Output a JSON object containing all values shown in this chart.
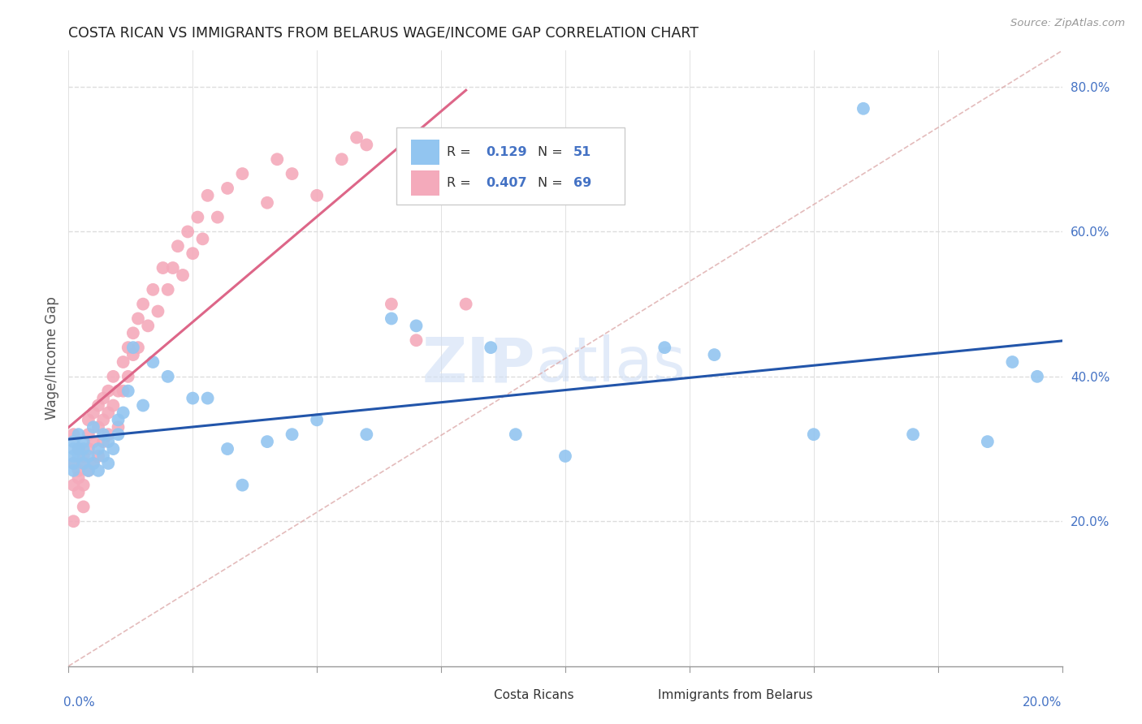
{
  "title": "COSTA RICAN VS IMMIGRANTS FROM BELARUS WAGE/INCOME GAP CORRELATION CHART",
  "source": "Source: ZipAtlas.com",
  "ylabel": "Wage/Income Gap",
  "blue_color": "#92C5F0",
  "pink_color": "#F4AABB",
  "blue_line_color": "#2255AA",
  "pink_line_color": "#DD6688",
  "diag_line_color": "#DDAAAA",
  "watermark_zip": "ZIP",
  "watermark_atlas": "atlas",
  "legend_r1": "R = ",
  "legend_v1": "0.129",
  "legend_n1": "N = ",
  "legend_nv1": "51",
  "legend_r2": "R = ",
  "legend_v2": "0.407",
  "legend_n2": "N = ",
  "legend_nv2": "69",
  "blue_x": [
    0.001,
    0.001,
    0.001,
    0.001,
    0.001,
    0.002,
    0.002,
    0.002,
    0.003,
    0.003,
    0.003,
    0.004,
    0.004,
    0.005,
    0.005,
    0.006,
    0.006,
    0.007,
    0.007,
    0.008,
    0.008,
    0.009,
    0.01,
    0.01,
    0.011,
    0.012,
    0.013,
    0.015,
    0.017,
    0.02,
    0.025,
    0.028,
    0.032,
    0.035,
    0.04,
    0.045,
    0.05,
    0.06,
    0.065,
    0.07,
    0.085,
    0.09,
    0.1,
    0.12,
    0.13,
    0.15,
    0.16,
    0.17,
    0.185,
    0.19,
    0.195
  ],
  "blue_y": [
    0.3,
    0.28,
    0.27,
    0.31,
    0.29,
    0.3,
    0.32,
    0.29,
    0.28,
    0.31,
    0.3,
    0.27,
    0.29,
    0.33,
    0.28,
    0.3,
    0.27,
    0.32,
    0.29,
    0.31,
    0.28,
    0.3,
    0.34,
    0.32,
    0.35,
    0.38,
    0.44,
    0.36,
    0.42,
    0.4,
    0.37,
    0.37,
    0.3,
    0.25,
    0.31,
    0.32,
    0.34,
    0.32,
    0.48,
    0.47,
    0.44,
    0.32,
    0.29,
    0.44,
    0.43,
    0.32,
    0.77,
    0.32,
    0.31,
    0.42,
    0.4
  ],
  "pink_x": [
    0.001,
    0.001,
    0.001,
    0.001,
    0.002,
    0.002,
    0.002,
    0.002,
    0.003,
    0.003,
    0.003,
    0.003,
    0.004,
    0.004,
    0.004,
    0.004,
    0.005,
    0.005,
    0.005,
    0.006,
    0.006,
    0.006,
    0.007,
    0.007,
    0.007,
    0.008,
    0.008,
    0.008,
    0.009,
    0.009,
    0.01,
    0.01,
    0.011,
    0.011,
    0.012,
    0.012,
    0.013,
    0.013,
    0.014,
    0.014,
    0.015,
    0.016,
    0.017,
    0.018,
    0.019,
    0.02,
    0.021,
    0.022,
    0.023,
    0.024,
    0.025,
    0.026,
    0.027,
    0.028,
    0.03,
    0.032,
    0.035,
    0.04,
    0.042,
    0.045,
    0.05,
    0.055,
    0.058,
    0.06,
    0.065,
    0.068,
    0.07,
    0.075,
    0.08
  ],
  "pink_y": [
    0.2,
    0.28,
    0.32,
    0.25,
    0.3,
    0.27,
    0.24,
    0.26,
    0.29,
    0.25,
    0.22,
    0.28,
    0.32,
    0.3,
    0.27,
    0.34,
    0.35,
    0.31,
    0.28,
    0.36,
    0.33,
    0.29,
    0.37,
    0.34,
    0.31,
    0.38,
    0.35,
    0.32,
    0.4,
    0.36,
    0.38,
    0.33,
    0.42,
    0.38,
    0.44,
    0.4,
    0.46,
    0.43,
    0.48,
    0.44,
    0.5,
    0.47,
    0.52,
    0.49,
    0.55,
    0.52,
    0.55,
    0.58,
    0.54,
    0.6,
    0.57,
    0.62,
    0.59,
    0.65,
    0.62,
    0.66,
    0.68,
    0.64,
    0.7,
    0.68,
    0.65,
    0.7,
    0.73,
    0.72,
    0.5,
    0.68,
    0.45,
    0.72,
    0.5
  ]
}
